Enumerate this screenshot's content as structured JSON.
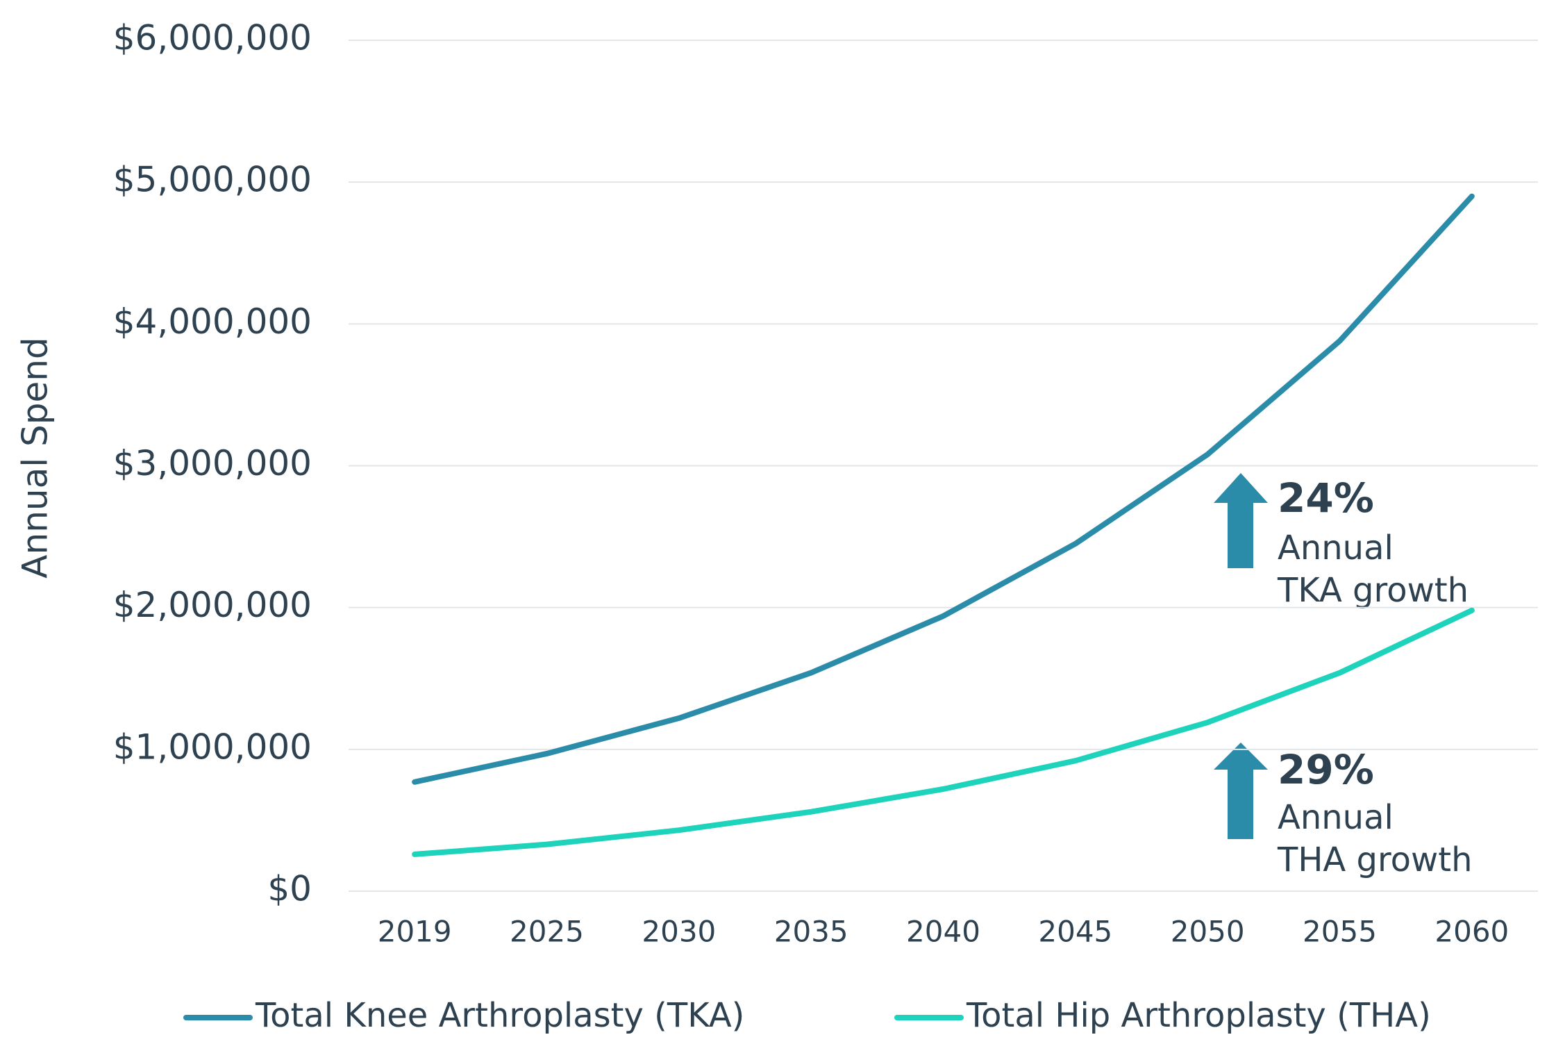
{
  "chart_data": {
    "type": "line",
    "y_label": "Annual Spend",
    "categories": [
      "2019",
      "2025",
      "2030",
      "2035",
      "2040",
      "2045",
      "2050",
      "2055",
      "2060"
    ],
    "series": [
      {
        "name": "Total Knee Arthroplasty (TKA)",
        "color": "#2b8ca9",
        "values": [
          770000,
          970000,
          1220000,
          1540000,
          1940000,
          2450000,
          3080000,
          3880000,
          4900000
        ]
      },
      {
        "name": "Total Hip Arthroplasty (THA)",
        "color": "#1dd3bb",
        "values": [
          260000,
          330000,
          430000,
          560000,
          720000,
          920000,
          1190000,
          1540000,
          1980000
        ]
      }
    ],
    "ylim": [
      0,
      6000000
    ],
    "yticks": [
      {
        "value": 0,
        "label": "$0"
      },
      {
        "value": 1000000,
        "label": "$1,000,000"
      },
      {
        "value": 2000000,
        "label": "$2,000,000"
      },
      {
        "value": 3000000,
        "label": "$3,000,000"
      },
      {
        "value": 4000000,
        "label": "$4,000,000"
      },
      {
        "value": 5000000,
        "label": "$5,000,000"
      },
      {
        "value": 6000000,
        "label": "$6,000,000"
      }
    ],
    "grid": true,
    "legend": "bottom",
    "annotations": [
      {
        "value": "24%",
        "line1": "Annual",
        "line2": "TKA growth"
      },
      {
        "value": "29%",
        "line1": "Annual",
        "line2": "THA growth"
      }
    ]
  }
}
